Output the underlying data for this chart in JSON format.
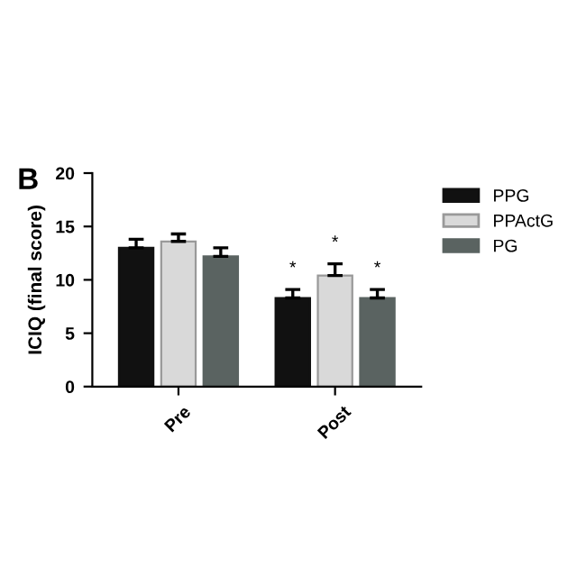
{
  "chart_data": {
    "type": "bar",
    "ylabel": "ICIQ (final score)",
    "categories": [
      "Pre",
      "Post"
    ],
    "series": [
      {
        "name": "PPG",
        "color": "#111111",
        "values": [
          13.0,
          8.3
        ],
        "errors": [
          [
            13.0,
            13.8
          ],
          [
            8.3,
            9.1
          ]
        ]
      },
      {
        "name": "PPActG",
        "color": "#d9d9d9",
        "values": [
          13.6,
          10.4
        ],
        "errors": [
          [
            13.6,
            14.3
          ],
          [
            10.4,
            11.5
          ]
        ]
      },
      {
        "name": "PG",
        "color": "#5a6361",
        "values": [
          12.2,
          8.3
        ],
        "errors": [
          [
            12.2,
            13.0
          ],
          [
            8.3,
            9.1
          ]
        ]
      }
    ],
    "ylim": [
      0,
      20
    ],
    "yticks": [
      0,
      5,
      10,
      15,
      20
    ],
    "grid": false,
    "legend": "right",
    "annotations": [
      "B",
      "*",
      "*",
      "*"
    ]
  }
}
